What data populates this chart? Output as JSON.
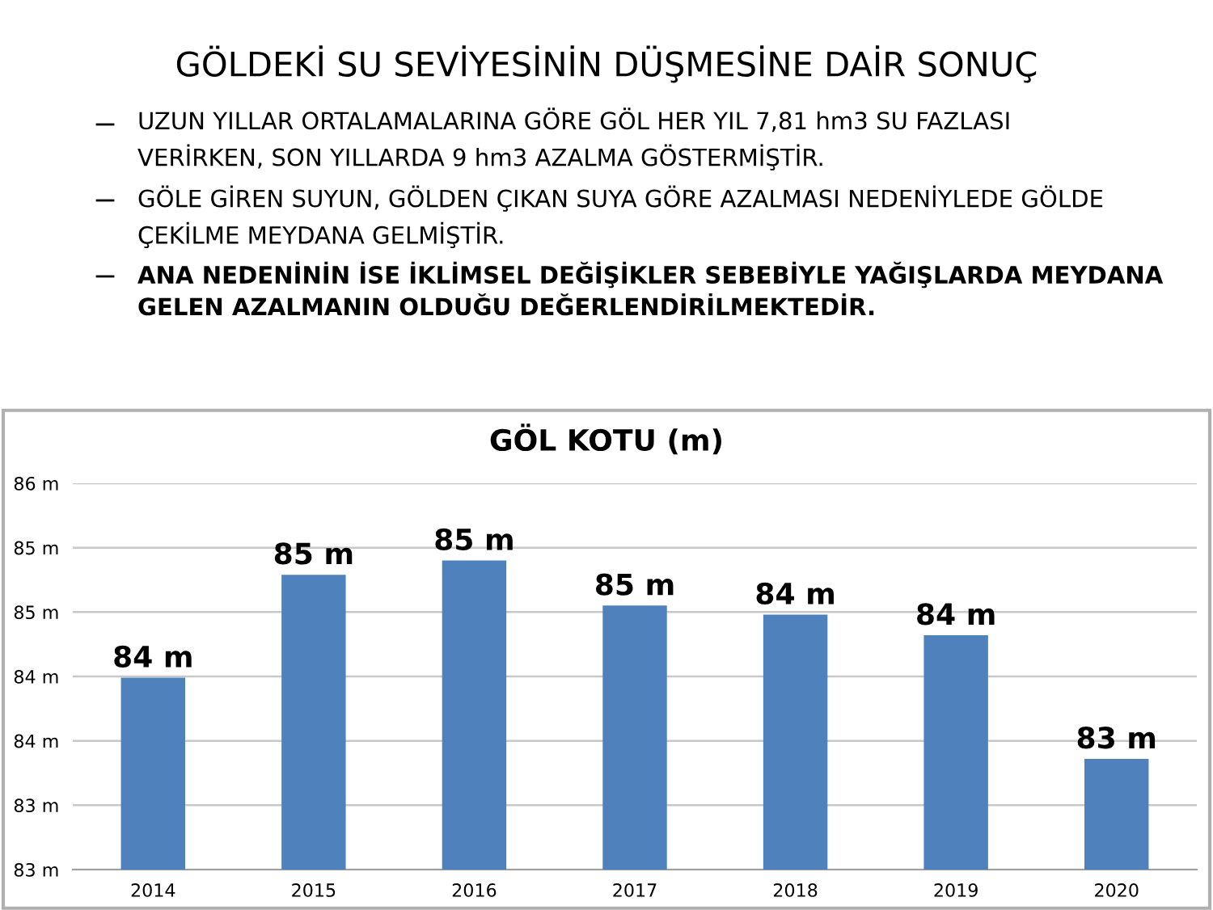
{
  "chart_data": {
    "type": "bar",
    "title": "GÖL KOTU (m)",
    "annotations": [
      "GÖLDEKİ SU SEVİYESİNİN DÜŞMESİNE DAİR SONUÇ",
      "UZUN YILLAR ORTALAMALARINA GÖRE GÖL HER YIL 7,81 hm3 SU FAZLASI\nVERİRKEN, SON YILLARDA 9 hm3 AZALMA GÖSTERMİŞTİR.",
      "GÖLE GİREN SUYUN, GÖLDEN ÇIKAN SUYA GÖRE AZALMASI NEDENİYLEDE GÖLDE\nÇEKİLME MEYDANA GELMİŞTİR.",
      "ANA NEDENİNİN İSE İKLİMSEL DEĞİŞİKLER SEBEBİYLE YAĞIŞLARDA MEYDANA\nGELEN AZALMANIN OLDUĞU DEĞERLENDİRİLMEKTEDİR."
    ],
    "categories": [
      "2014",
      "2015",
      "2016",
      "2017",
      "2018",
      "2019",
      "2020"
    ],
    "values": [
      83.99,
      84.79,
      84.9,
      84.55,
      84.48,
      84.32,
      83.36
    ],
    "value_labels": [
      "84 m",
      "85 m",
      "85 m",
      "85 m",
      "84 m",
      "84 m",
      "83 m"
    ],
    "color": "#4f81bd",
    "ylim": [
      82.5,
      85.5
    ],
    "yticks": [
      {
        "value": 82.5,
        "label": "83 m"
      },
      {
        "value": 83,
        "label": "83 m"
      },
      {
        "value": 83.5,
        "label": "84 m"
      },
      {
        "value": 84,
        "label": "84 m"
      },
      {
        "value": 84.5,
        "label": "85 m"
      },
      {
        "value": 85,
        "label": "85 m"
      },
      {
        "value": 85.5,
        "label": "86 m"
      }
    ],
    "grid": "y"
  }
}
